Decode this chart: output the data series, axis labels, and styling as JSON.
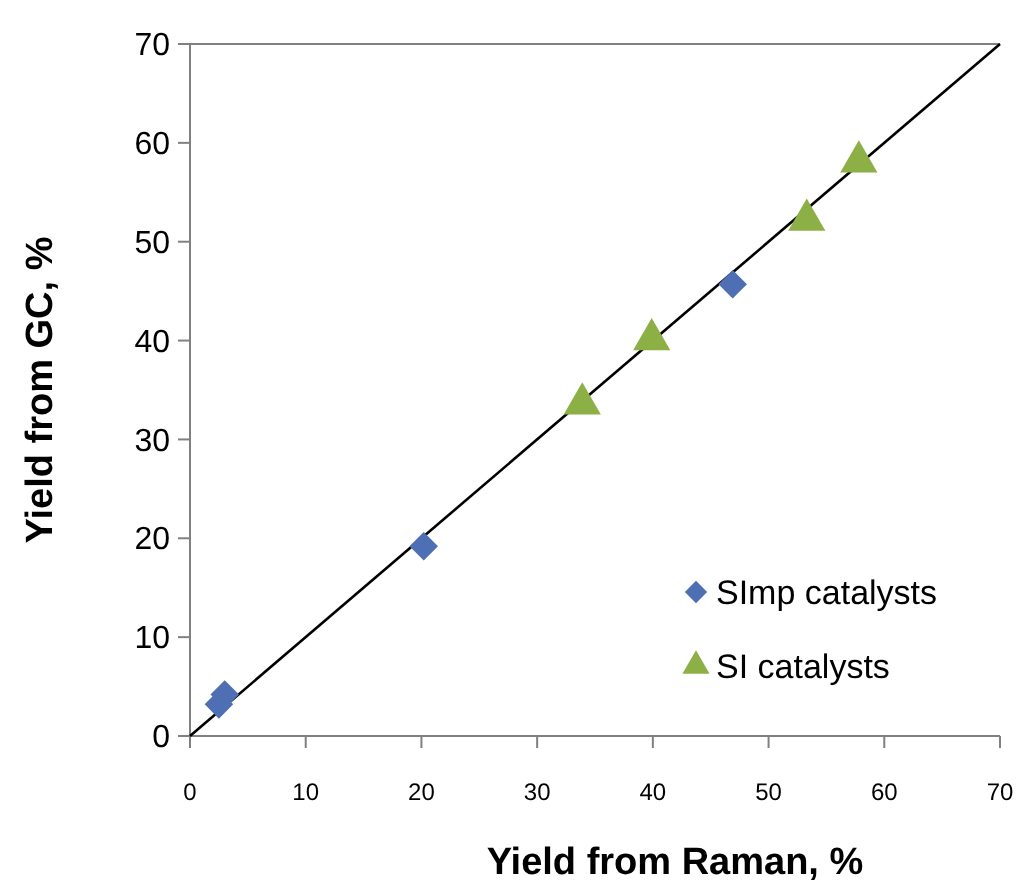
{
  "chart_data": {
    "type": "scatter",
    "xlabel": "Yield from Raman, %",
    "ylabel": "Yield from GC, %",
    "xlim": [
      0,
      70
    ],
    "ylim": [
      0,
      70
    ],
    "xticks": [
      0,
      10,
      20,
      30,
      40,
      50,
      60,
      70
    ],
    "yticks": [
      0,
      10,
      20,
      30,
      40,
      50,
      60,
      70
    ],
    "legend": "bottom right",
    "grid": false,
    "series": [
      {
        "type": "line",
        "color": "#000000",
        "x": [
          0,
          70
        ],
        "values": [
          0,
          70
        ],
        "marker": "none",
        "line_style": "solid"
      },
      {
        "name": "SImp catalysts",
        "color": "#4f6fb5",
        "marker": "diamond",
        "x": [
          2.5,
          3.0,
          20.2,
          46.9
        ],
        "values": [
          3.2,
          4.2,
          19.2,
          45.7
        ]
      },
      {
        "name": "SI catalysts",
        "color": "#8cb045",
        "marker": "triangle",
        "x": [
          33.9,
          39.9,
          53.3,
          57.8
        ],
        "values": [
          33.6,
          40.1,
          52.2,
          58.1
        ]
      }
    ]
  }
}
